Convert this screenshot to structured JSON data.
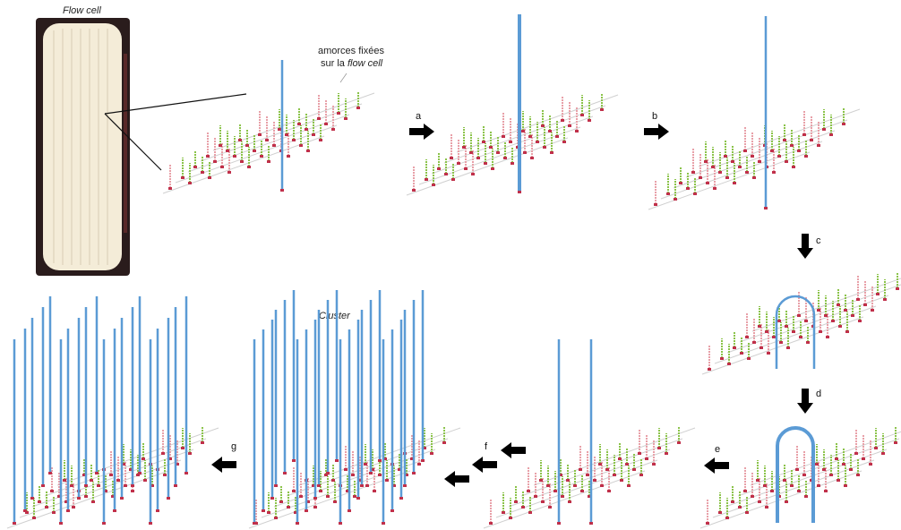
{
  "labels": {
    "flow_cell": "Flow cell",
    "primers_line1": "amorces fixées",
    "primers_line2_prefix": "sur la ",
    "primers_line2_italic": "flow cell",
    "cluster": "Cluster"
  },
  "steps": [
    "a",
    "b",
    "c",
    "d",
    "e",
    "f",
    "g"
  ],
  "colors": {
    "strand_blue": "#5b9bd5",
    "primer_green": "#8bc34a",
    "primer_pink": "#e8a0a8",
    "base_red": "#c0304a",
    "surface_gray": "#d0d0d0",
    "flowcell_border": "#2a2020",
    "flowcell_lane": "#f5efe0",
    "arrow": "#000000"
  }
}
